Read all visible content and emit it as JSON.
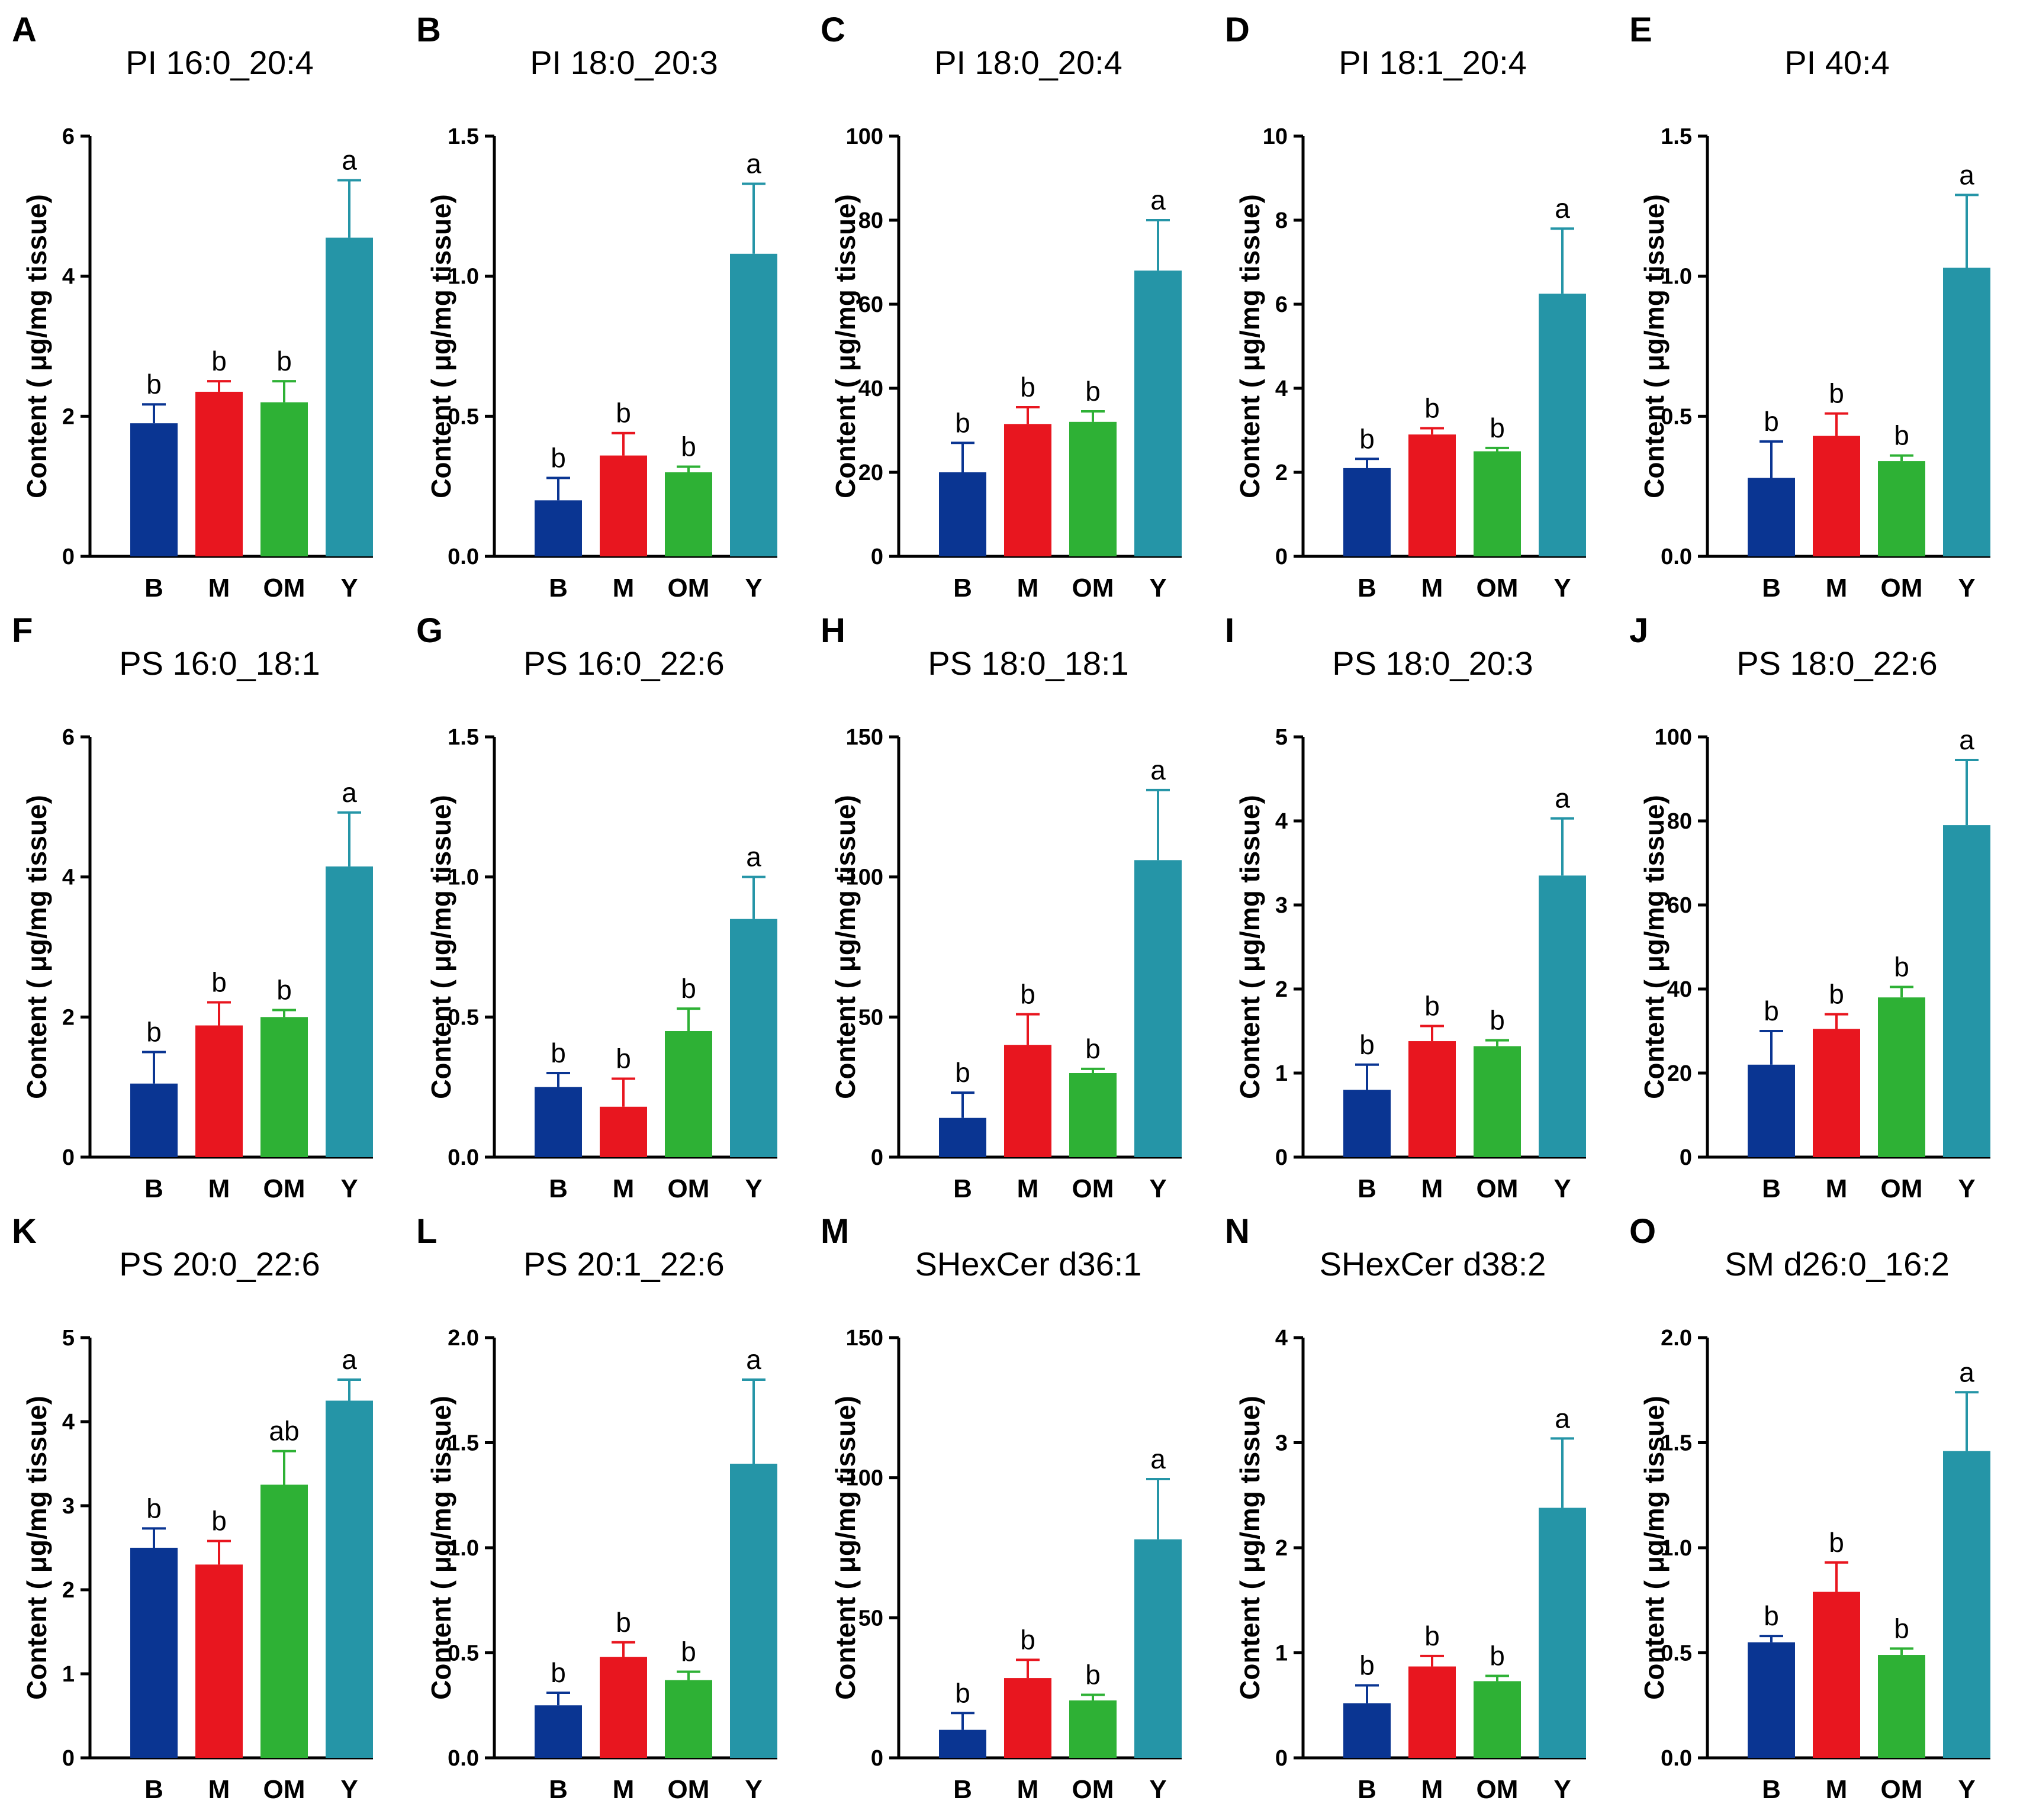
{
  "figure": {
    "ylabel": "Content ( μg/mg tissue)",
    "colors": {
      "B": "#0a3592",
      "M": "#e8161f",
      "OM": "#2eb135",
      "Y": "#2595a7"
    }
  },
  "chart_data": [
    {
      "type": "bar",
      "letter": "A",
      "title": "PI 16:0_20:4",
      "ylabel": "Content ( μg/mg tissue)",
      "categories": [
        "B",
        "M",
        "OM",
        "Y"
      ],
      "values": [
        1.9,
        2.35,
        2.2,
        4.55
      ],
      "errors": [
        0.27,
        0.15,
        0.3,
        0.82
      ],
      "significance": [
        "b",
        "b",
        "b",
        "a"
      ],
      "ylim": [
        0,
        6
      ],
      "yticks": [
        "0",
        "2",
        "4",
        "6"
      ]
    },
    {
      "type": "bar",
      "letter": "B",
      "title": "PI 18:0_20:3",
      "ylabel": "Content ( μg/mg tissue)",
      "categories": [
        "B",
        "M",
        "OM",
        "Y"
      ],
      "values": [
        0.2,
        0.36,
        0.3,
        1.08
      ],
      "errors": [
        0.08,
        0.08,
        0.02,
        0.25
      ],
      "significance": [
        "b",
        "b",
        "b",
        "a"
      ],
      "ylim": [
        0,
        1.5
      ],
      "yticks": [
        "0.0",
        "0.5",
        "1.0",
        "1.5"
      ]
    },
    {
      "type": "bar",
      "letter": "C",
      "title": "PI 18:0_20:4",
      "ylabel": "Content ( μg/mg tissue)",
      "categories": [
        "B",
        "M",
        "OM",
        "Y"
      ],
      "values": [
        20,
        31.5,
        32,
        68
      ],
      "errors": [
        7,
        4,
        2.5,
        12
      ],
      "significance": [
        "b",
        "b",
        "b",
        "a"
      ],
      "ylim": [
        0,
        100
      ],
      "yticks": [
        "0",
        "20",
        "40",
        "60",
        "80",
        "100"
      ]
    },
    {
      "type": "bar",
      "letter": "D",
      "title": "PI 18:1_20:4",
      "ylabel": "Content ( μg/mg tissue)",
      "categories": [
        "B",
        "M",
        "OM",
        "Y"
      ],
      "values": [
        2.1,
        2.9,
        2.5,
        6.25
      ],
      "errors": [
        0.22,
        0.15,
        0.08,
        1.55
      ],
      "significance": [
        "b",
        "b",
        "b",
        "a"
      ],
      "ylim": [
        0,
        10
      ],
      "yticks": [
        "0",
        "2",
        "4",
        "6",
        "8",
        "10"
      ]
    },
    {
      "type": "bar",
      "letter": "E",
      "title": "PI 40:4",
      "ylabel": "Content ( μg/mg tissue)",
      "categories": [
        "B",
        "M",
        "OM",
        "Y"
      ],
      "values": [
        0.28,
        0.43,
        0.34,
        1.03
      ],
      "errors": [
        0.13,
        0.08,
        0.02,
        0.26
      ],
      "significance": [
        "b",
        "b",
        "b",
        "a"
      ],
      "ylim": [
        0,
        1.5
      ],
      "yticks": [
        "0.0",
        "0.5",
        "1.0",
        "1.5"
      ]
    },
    {
      "type": "bar",
      "letter": "F",
      "title": "PS 16:0_18:1",
      "ylabel": "Content ( μg/mg tissue)",
      "categories": [
        "B",
        "M",
        "OM",
        "Y"
      ],
      "values": [
        1.05,
        1.88,
        2.0,
        4.15
      ],
      "errors": [
        0.45,
        0.33,
        0.1,
        0.77
      ],
      "significance": [
        "b",
        "b",
        "b",
        "a"
      ],
      "ylim": [
        0,
        6
      ],
      "yticks": [
        "0",
        "2",
        "4",
        "6"
      ]
    },
    {
      "type": "bar",
      "letter": "G",
      "title": "PS 16:0_22:6",
      "ylabel": "Content ( μg/mg tissue)",
      "categories": [
        "B",
        "M",
        "OM",
        "Y"
      ],
      "values": [
        0.25,
        0.18,
        0.45,
        0.85
      ],
      "errors": [
        0.05,
        0.1,
        0.08,
        0.15
      ],
      "significance": [
        "b",
        "b",
        "b",
        "a"
      ],
      "ylim": [
        0,
        1.5
      ],
      "yticks": [
        "0.0",
        "0.5",
        "1.0",
        "1.5"
      ]
    },
    {
      "type": "bar",
      "letter": "H",
      "title": "PS 18:0_18:1",
      "ylabel": "Content ( μg/mg tissue)",
      "categories": [
        "B",
        "M",
        "OM",
        "Y"
      ],
      "values": [
        14,
        40,
        30,
        106
      ],
      "errors": [
        9,
        11,
        1.5,
        25
      ],
      "significance": [
        "b",
        "b",
        "b",
        "a"
      ],
      "ylim": [
        0,
        150
      ],
      "yticks": [
        "0",
        "50",
        "100",
        "150"
      ]
    },
    {
      "type": "bar",
      "letter": "I",
      "title": "PS 18:0_20:3",
      "ylabel": "Content ( μg/mg tissue)",
      "categories": [
        "B",
        "M",
        "OM",
        "Y"
      ],
      "values": [
        0.8,
        1.38,
        1.32,
        3.35
      ],
      "errors": [
        0.3,
        0.18,
        0.07,
        0.68
      ],
      "significance": [
        "b",
        "b",
        "b",
        "a"
      ],
      "ylim": [
        0,
        5
      ],
      "yticks": [
        "0",
        "1",
        "2",
        "3",
        "4",
        "5"
      ]
    },
    {
      "type": "bar",
      "letter": "J",
      "title": "PS 18:0_22:6",
      "ylabel": "Content ( μg/mg tissue)",
      "categories": [
        "B",
        "M",
        "OM",
        "Y"
      ],
      "values": [
        22,
        30.5,
        38,
        79
      ],
      "errors": [
        8,
        3.5,
        2.5,
        15.5
      ],
      "significance": [
        "b",
        "b",
        "b",
        "a"
      ],
      "ylim": [
        0,
        100
      ],
      "yticks": [
        "0",
        "20",
        "40",
        "60",
        "80",
        "100"
      ]
    },
    {
      "type": "bar",
      "letter": "K",
      "title": "PS 20:0_22:6",
      "ylabel": "Content ( μg/mg tissue)",
      "categories": [
        "B",
        "M",
        "OM",
        "Y"
      ],
      "values": [
        2.5,
        2.3,
        3.25,
        4.25
      ],
      "errors": [
        0.23,
        0.28,
        0.4,
        0.25
      ],
      "significance": [
        "b",
        "b",
        "ab",
        "a"
      ],
      "ylim": [
        0,
        5
      ],
      "yticks": [
        "0",
        "1",
        "2",
        "3",
        "4",
        "5"
      ]
    },
    {
      "type": "bar",
      "letter": "L",
      "title": "PS 20:1_22:6",
      "ylabel": "Content ( μg/mg tissue)",
      "categories": [
        "B",
        "M",
        "OM",
        "Y"
      ],
      "values": [
        0.25,
        0.48,
        0.37,
        1.4
      ],
      "errors": [
        0.06,
        0.07,
        0.04,
        0.4
      ],
      "significance": [
        "b",
        "b",
        "b",
        "a"
      ],
      "ylim": [
        0,
        2.0
      ],
      "yticks": [
        "0.0",
        "0.5",
        "1.0",
        "1.5",
        "2.0"
      ]
    },
    {
      "type": "bar",
      "letter": "M",
      "title": "SHexCer d36:1",
      "ylabel": "Content ( μg/mg tissue)",
      "categories": [
        "B",
        "M",
        "OM",
        "Y"
      ],
      "values": [
        10,
        28.5,
        20.5,
        78
      ],
      "errors": [
        6,
        6.5,
        2,
        21.5
      ],
      "significance": [
        "b",
        "b",
        "b",
        "a"
      ],
      "ylim": [
        0,
        150
      ],
      "yticks": [
        "0",
        "50",
        "100",
        "150"
      ]
    },
    {
      "type": "bar",
      "letter": "N",
      "title": "SHexCer d38:2",
      "ylabel": "Content ( μg/mg tissue)",
      "categories": [
        "B",
        "M",
        "OM",
        "Y"
      ],
      "values": [
        0.52,
        0.87,
        0.73,
        2.38
      ],
      "errors": [
        0.17,
        0.1,
        0.05,
        0.66
      ],
      "significance": [
        "b",
        "b",
        "b",
        "a"
      ],
      "ylim": [
        0,
        4
      ],
      "yticks": [
        "0",
        "1",
        "2",
        "3",
        "4"
      ]
    },
    {
      "type": "bar",
      "letter": "O",
      "title": "SM d26:0_16:2",
      "ylabel": "Content ( μg/mg tissue)",
      "categories": [
        "B",
        "M",
        "OM",
        "Y"
      ],
      "values": [
        0.55,
        0.79,
        0.49,
        1.46
      ],
      "errors": [
        0.03,
        0.14,
        0.03,
        0.28
      ],
      "significance": [
        "b",
        "b",
        "b",
        "a"
      ],
      "ylim": [
        0,
        2.0
      ],
      "yticks": [
        "0.0",
        "0.5",
        "1.0",
        "1.5",
        "2.0"
      ]
    }
  ]
}
